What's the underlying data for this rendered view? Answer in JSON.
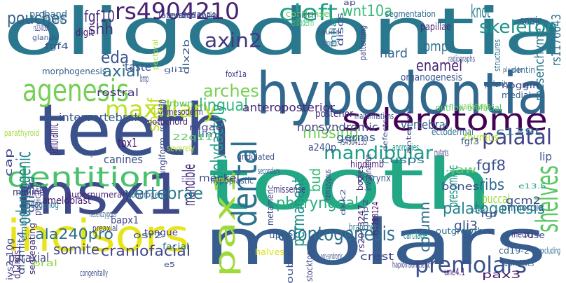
{
  "words": [
    {
      "text": "oligodontia",
      "color": "#2a788e"
    },
    {
      "text": "teeth",
      "color": "#3b518b"
    },
    {
      "text": "tooth",
      "color": "#22a884"
    },
    {
      "text": "msx1",
      "color": "#3e4a89"
    },
    {
      "text": "molars",
      "color": "#365d8d"
    },
    {
      "text": "hypodontia",
      "color": "#31688e"
    },
    {
      "text": "sclerotome",
      "color": "#440154"
    },
    {
      "text": "pax1",
      "color": "#a0da39"
    },
    {
      "text": "incisors",
      "color": "#e8e419"
    },
    {
      "text": "dentition",
      "color": "#4ac16d"
    },
    {
      "text": "agenesis",
      "color": "#75d054"
    },
    {
      "text": "maxillary",
      "color": "#bddf26"
    },
    {
      "text": "dental",
      "color": "#2c728e"
    },
    {
      "text": "rs4904210",
      "color": "#482173"
    },
    {
      "text": "cleft",
      "color": "#1fa187"
    },
    {
      "text": "axin2",
      "color": "#443983"
    },
    {
      "text": "wnt10a",
      "color": "#38b977"
    },
    {
      "text": "knot",
      "color": "#287d8e"
    },
    {
      "text": "skeleton",
      "color": "#1f958b"
    },
    {
      "text": "palatal",
      "color": "#414487"
    },
    {
      "text": "shelves",
      "color": "#5cc863"
    },
    {
      "text": "mandibular",
      "color": "#1e9c89"
    },
    {
      "text": "missing",
      "color": "#70cf57"
    },
    {
      "text": "palatogenesis",
      "color": "#26828e"
    },
    {
      "text": "odontogenesis",
      "color": "#2d708e"
    },
    {
      "text": "premolars",
      "color": "#3b528b"
    },
    {
      "text": "pouches",
      "color": "#355f8d"
    },
    {
      "text": "fgf10",
      "color": "#472d7b"
    },
    {
      "text": "shh",
      "color": "#46337e"
    },
    {
      "text": "eda",
      "color": "#39558c"
    },
    {
      "text": "axial",
      "color": "#2e6e8e"
    },
    {
      "text": "arches",
      "color": "#7ad151"
    },
    {
      "text": "lingual",
      "color": "#34b679"
    },
    {
      "text": "odontogenic",
      "color": "#25858e"
    },
    {
      "text": "bmp4",
      "color": "#2e6f8e"
    },
    {
      "text": "enamel",
      "color": "#482475"
    },
    {
      "text": "fgf8",
      "color": "#3b518b"
    },
    {
      "text": "ribs",
      "color": "#31688e"
    },
    {
      "text": "pharyngeal",
      "color": "#27ad81"
    },
    {
      "text": "mandible",
      "color": "#472f7d"
    },
    {
      "text": "permanent",
      "color": "#20928c"
    },
    {
      "text": "polydactyly",
      "color": "#1f9e89"
    },
    {
      "text": "tbx1",
      "color": "#481a6c"
    },
    {
      "text": "vertebrae",
      "color": "#2a788e"
    },
    {
      "text": "craniofacial",
      "color": "#404588"
    },
    {
      "text": "somite",
      "color": "#3f4788"
    },
    {
      "text": "ala240pro",
      "color": "#2d718e"
    },
    {
      "text": "paraxial",
      "color": "#433e85"
    },
    {
      "text": "column",
      "color": "#2c738e"
    },
    {
      "text": "gli3",
      "color": "#3a538b"
    },
    {
      "text": "presomitic",
      "color": "#1f968b"
    },
    {
      "text": "vertebral",
      "color": "#355e8d"
    },
    {
      "text": "nonsyndromic",
      "color": "#424186"
    },
    {
      "text": "anteroposterior",
      "color": "#482878"
    },
    {
      "text": "intervertebral",
      "color": "#37598c"
    },
    {
      "text": "panoramic",
      "color": "#46307e"
    },
    {
      "text": "canines",
      "color": "#3d4d8a"
    },
    {
      "text": "shelf",
      "color": "#c2df23"
    },
    {
      "text": "buccal",
      "color": "#9dd93b"
    },
    {
      "text": "bud",
      "color": "#35b779"
    },
    {
      "text": "sonic",
      "color": "#375a8c"
    },
    {
      "text": "hard",
      "color": "#31688e"
    },
    {
      "text": "lip",
      "color": "#3c4f8a"
    },
    {
      "text": "papillae",
      "color": "#482677"
    },
    {
      "text": "organogenesis",
      "color": "#39568c"
    },
    {
      "text": "mesenchyme",
      "color": "#2a768e"
    },
    {
      "text": "rs1176643",
      "color": "#2c728e"
    },
    {
      "text": "digit",
      "color": "#481f70"
    },
    {
      "text": "taste",
      "color": "#39568c"
    },
    {
      "text": "proband",
      "color": "#2f6c8e"
    },
    {
      "text": "lateral",
      "color": "#3e4989"
    },
    {
      "text": "rs2073244",
      "color": "#414287"
    },
    {
      "text": "microdontia",
      "color": "#3b528b"
    },
    {
      "text": "condense",
      "color": "#6ece58"
    },
    {
      "text": "segmentation",
      "color": "#2f6c8e"
    },
    {
      "text": "crown",
      "color": "#52c569"
    },
    {
      "text": "dlx2b",
      "color": "#37598c"
    },
    {
      "text": "rs6175430",
      "color": "#404688"
    },
    {
      "text": "mesoderm",
      "color": "#453882"
    },
    {
      "text": "notochord",
      "color": "#482374"
    },
    {
      "text": "pectoral",
      "color": "#a8db34"
    },
    {
      "text": "bmp",
      "color": "#3b528b"
    },
    {
      "text": "rostral",
      "color": "#463480"
    },
    {
      "text": "morphogenesis",
      "color": "#33638d"
    },
    {
      "text": "ectodermal",
      "color": "#2b748e"
    },
    {
      "text": "outflow orofacial",
      "color": "#56c667"
    },
    {
      "text": "thymus",
      "color": "#b8de29"
    },
    {
      "text": "posterior",
      "color": "#472c7a"
    },
    {
      "text": "hypoplastic",
      "color": "#3b528b"
    },
    {
      "text": "hindlimb",
      "color": "#481769"
    },
    {
      "text": "missense",
      "color": "#443983"
    },
    {
      "text": "undulated",
      "color": "#3b528b"
    },
    {
      "text": "rugae",
      "color": "#414487"
    },
    {
      "text": "limb",
      "color": "#2c728e"
    },
    {
      "text": "secondary",
      "color": "#355f8d"
    },
    {
      "text": "meckel",
      "color": "#3e4a89"
    },
    {
      "text": "a240p",
      "color": "#3b518b"
    },
    {
      "text": "rs4904155",
      "color": "#414487"
    },
    {
      "text": "cusps",
      "color": "#2c728e"
    },
    {
      "text": "anomalies",
      "color": "#1f958b"
    },
    {
      "text": "germs",
      "color": "#31688e"
    },
    {
      "text": "midline",
      "color": "#472d7b"
    },
    {
      "text": "hedgehog",
      "color": "#2a788e"
    },
    {
      "text": "ameloblast",
      "color": "#482071"
    },
    {
      "text": "chondrogenic",
      "color": "#355f8d"
    },
    {
      "text": "supernumerary",
      "color": "#482576"
    },
    {
      "text": "segregating",
      "color": "#46327e"
    },
    {
      "text": "fungiform",
      "color": "#3f4889"
    },
    {
      "text": "discs",
      "color": "#39568c"
    },
    {
      "text": "birth",
      "color": "#2d708e"
    },
    {
      "text": "endoderm",
      "color": "#44bf70"
    },
    {
      "text": "mlia",
      "color": "#25838e"
    },
    {
      "text": "dentin",
      "color": "#2a788e"
    },
    {
      "text": "radiographs",
      "color": "#3b528b"
    },
    {
      "text": "invagination",
      "color": "#453781"
    },
    {
      "text": "rs2073247",
      "color": "#482979"
    },
    {
      "text": "rs1288124",
      "color": "#471063"
    },
    {
      "text": "bmp2",
      "color": "#39558c"
    },
    {
      "text": "cartilage",
      "color": "#26828e"
    },
    {
      "text": "branchial",
      "color": "#2a788e"
    },
    {
      "text": "crest",
      "color": "#3f4788"
    },
    {
      "text": "non-syndromic",
      "color": "#39568c"
    },
    {
      "text": "haploinsufficiency",
      "color": "#424086"
    },
    {
      "text": "pax3",
      "color": "#481b6d"
    },
    {
      "text": "unc4.1",
      "color": "#482173"
    },
    {
      "text": "cd19-2",
      "color": "#355f8d"
    },
    {
      "text": "derivatives",
      "color": "#32648e"
    },
    {
      "text": "outgrowth",
      "color": "#2e6e8e"
    },
    {
      "text": "primordia",
      "color": "#32648e"
    },
    {
      "text": "gcm2",
      "color": "#3e4a89"
    },
    {
      "text": "fuse",
      "color": "#3f4788"
    },
    {
      "text": "meox1",
      "color": "#44397f"
    },
    {
      "text": "excluding",
      "color": "#2f6b8e"
    },
    {
      "text": "bones",
      "color": "#3b518b"
    },
    {
      "text": "jaw",
      "color": "#5ec962"
    },
    {
      "text": "mutants",
      "color": "#443a83"
    },
    {
      "text": "pharynx",
      "color": "#38598c"
    },
    {
      "text": "dkk2",
      "color": "#3b528b"
    },
    {
      "text": "homozygous",
      "color": "#404588"
    },
    {
      "text": "stockton",
      "color": "#3e4c8a"
    },
    {
      "text": "double",
      "color": "#3b528b"
    },
    {
      "text": "halves",
      "color": "#dae319"
    },
    {
      "text": "upper",
      "color": "#3b528b"
    },
    {
      "text": "metameric",
      "color": "#3e4a89"
    },
    {
      "text": "facial",
      "color": "#2c718e"
    },
    {
      "text": "tongue",
      "color": "#433e85"
    },
    {
      "text": "osr2",
      "color": "#37598c"
    },
    {
      "text": "bapx1",
      "color": "#424186"
    },
    {
      "text": "preaxial",
      "color": "#404588"
    },
    {
      "text": "heterozygous",
      "color": "#355f8d"
    },
    {
      "text": "congenitally",
      "color": "#3b528b"
    },
    {
      "text": "ivs2-10g",
      "color": "#404688"
    },
    {
      "text": "dl2mit4",
      "color": "#38588c"
    },
    {
      "text": "d12nds1",
      "color": "#481f70"
    },
    {
      "text": "embryos",
      "color": "#2d708e"
    },
    {
      "text": "gli3r",
      "color": "#3d4e8a"
    },
    {
      "text": "pedicles",
      "color": "#414487"
    },
    {
      "text": "cap",
      "color": "#3f4788"
    },
    {
      "text": "parathyroid",
      "color": "#9fda3a"
    },
    {
      "text": "foregut",
      "color": "#3d4e8a"
    },
    {
      "text": "22q11",
      "color": "#5ac864"
    },
    {
      "text": "severely",
      "color": "#b5de2b"
    },
    {
      "text": "fgf4",
      "color": "#39568c"
    },
    {
      "text": "glands",
      "color": "#3b528b"
    },
    {
      "text": "rs2240308",
      "color": "#404688"
    },
    {
      "text": "maxilla",
      "color": "#2a788e"
    },
    {
      "text": "gli1",
      "color": "#3b528b"
    },
    {
      "text": "foxf1a",
      "color": "#424086"
    },
    {
      "text": "chondrogenic",
      "color": "#31688e"
    },
    {
      "text": "caudal",
      "color": "#3b528b"
    },
    {
      "text": "patterning",
      "color": "#3f4788"
    },
    {
      "text": "structures",
      "color": "#2c728e"
    },
    {
      "text": "noggin",
      "color": "#404588"
    },
    {
      "text": "medial",
      "color": "#355f8d"
    },
    {
      "text": "polarity",
      "color": "#37598c"
    },
    {
      "text": "placode",
      "color": "#3b528b"
    },
    {
      "text": "variations",
      "color": "#7fd34e"
    },
    {
      "text": "anterior",
      "color": "#443983"
    },
    {
      "text": "malformations",
      "color": "#3e4a89"
    },
    {
      "text": "c139t",
      "color": "#2e6e8e"
    },
    {
      "text": "defects",
      "color": "#3b528b"
    },
    {
      "text": "bodies",
      "color": "#472f7d"
    },
    {
      "text": "fgf3",
      "color": "#3a548c"
    },
    {
      "text": "fgf",
      "color": "#3b528b"
    },
    {
      "text": "dkk",
      "color": "#2c728e"
    },
    {
      "text": "ap",
      "color": "#404688"
    },
    {
      "text": "e13.5",
      "color": "#1fa187"
    },
    {
      "text": "pral",
      "color": "#8fd744"
    },
    {
      "text": "e5",
      "color": "#3b528b"
    }
  ]
}
